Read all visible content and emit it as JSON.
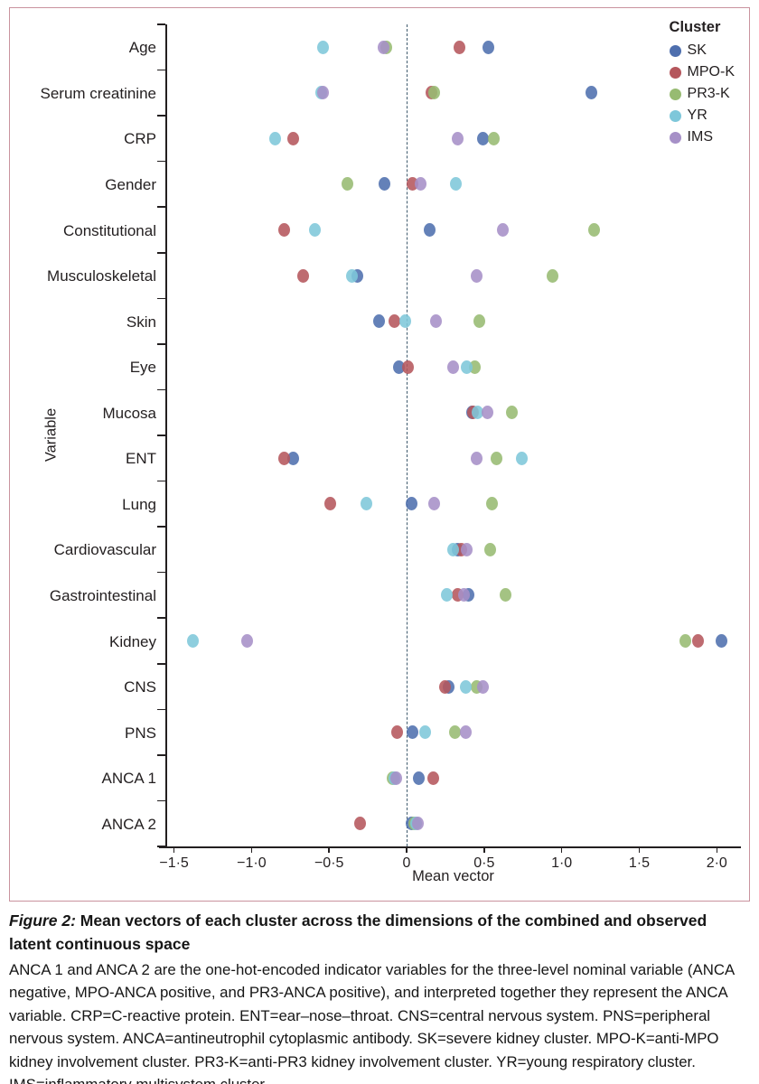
{
  "figure": {
    "caption_label": "Figure 2:",
    "caption_title": "Mean vectors of each cluster across the dimensions of the combined and observed latent continuous space",
    "caption_body": "ANCA 1 and ANCA 2 are the one-hot-encoded indicator variables for the three-level nominal variable (ANCA negative, MPO-ANCA positive, and PR3-ANCA positive), and interpreted together they represent the ANCA variable. CRP=C-reactive protein. ENT=ear–nose–throat. CNS=central nervous system. PNS=peripheral nervous system. ANCA=antineutrophil cytoplasmic antibody. SK=severe kidney cluster. MPO-K=anti-MPO kidney involvement cluster. PR3-K=anti-PR3 kidney involvement cluster. YR=young respiratory cluster. IMS=inflammatory multisystem cluster."
  },
  "legend": {
    "title": "Cluster"
  },
  "colors": {
    "frame": "#c9939e",
    "zero_line": "#3f5a6d",
    "axis": "#231f20"
  },
  "chart_data": {
    "type": "scatter",
    "xlabel": "Mean vector",
    "ylabel": "Variable",
    "xlim": [
      -1.55,
      2.15
    ],
    "zero_line": 0,
    "grid": false,
    "legend_position": "top-right",
    "x_ticks": [
      {
        "value": -1.5,
        "label": "−1·5"
      },
      {
        "value": -1.0,
        "label": "−1·0"
      },
      {
        "value": -0.5,
        "label": "−0·5"
      },
      {
        "value": 0,
        "label": "0"
      },
      {
        "value": 0.5,
        "label": "0·5"
      },
      {
        "value": 1.0,
        "label": "1·0"
      },
      {
        "value": 1.5,
        "label": "1·5"
      },
      {
        "value": 2.0,
        "label": "2·0"
      }
    ],
    "categories": [
      "Age",
      "Serum creatinine",
      "CRP",
      "Gender",
      "Constitutional",
      "Musculoskeletal",
      "Skin",
      "Eye",
      "Mucosa",
      "ENT",
      "Lung",
      "Cardiovascular",
      "Gastrointestinal",
      "Kidney",
      "CNS",
      "PNS",
      "ANCA 1",
      "ANCA 2"
    ],
    "series": [
      {
        "name": "SK",
        "color": "#4e6fae",
        "values": [
          0.53,
          1.19,
          0.49,
          -0.14,
          0.15,
          -0.32,
          -0.18,
          -0.05,
          0.42,
          -0.73,
          0.03,
          0.33,
          0.4,
          2.03,
          0.27,
          0.04,
          0.08,
          0.03
        ]
      },
      {
        "name": "MPO-K",
        "color": "#b5565c",
        "values": [
          0.34,
          0.16,
          -0.73,
          0.04,
          -0.79,
          -0.67,
          -0.08,
          0.01,
          0.43,
          -0.79,
          -0.49,
          0.35,
          0.33,
          1.88,
          0.25,
          -0.06,
          0.17,
          -0.3
        ]
      },
      {
        "name": "PR3-K",
        "color": "#97bb72",
        "values": [
          -0.13,
          0.18,
          0.56,
          -0.38,
          1.21,
          0.94,
          0.47,
          0.44,
          0.68,
          0.58,
          0.55,
          0.54,
          0.64,
          1.8,
          0.45,
          0.31,
          -0.09,
          0.05
        ]
      },
      {
        "name": "YR",
        "color": "#7ec7da",
        "values": [
          -0.54,
          -0.55,
          -0.85,
          0.32,
          -0.59,
          -0.35,
          -0.01,
          0.39,
          0.46,
          0.74,
          -0.26,
          0.3,
          0.26,
          -1.38,
          0.38,
          0.12,
          -0.08,
          0.06
        ]
      },
      {
        "name": "IMS",
        "color": "#a690c7",
        "values": [
          -0.15,
          -0.54,
          0.33,
          0.09,
          0.62,
          0.45,
          0.19,
          0.3,
          0.52,
          0.45,
          0.18,
          0.39,
          0.37,
          -1.03,
          0.49,
          0.38,
          -0.07,
          0.07
        ]
      }
    ]
  }
}
